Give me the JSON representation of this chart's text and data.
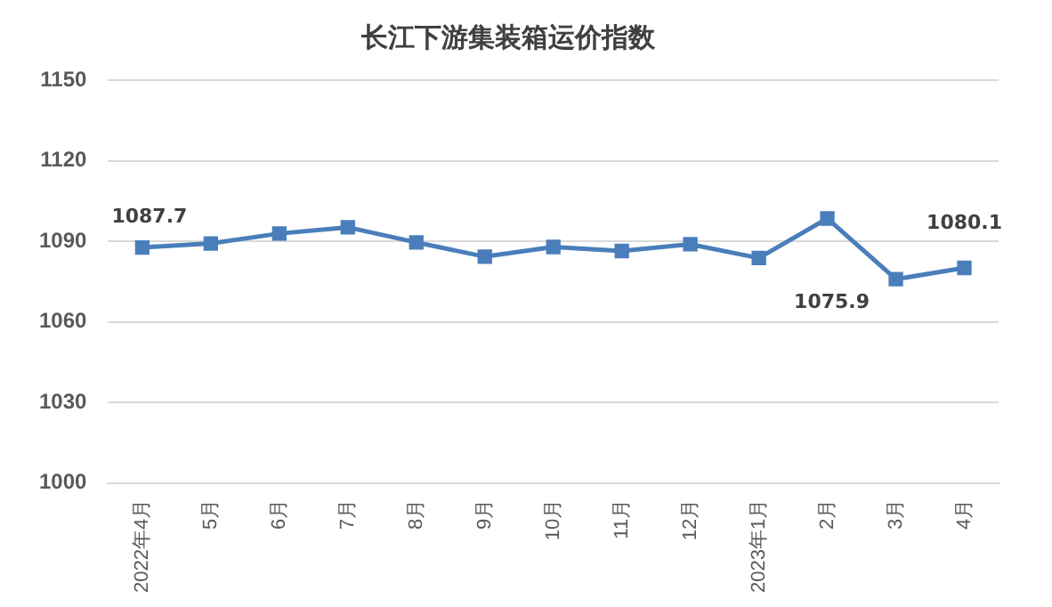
{
  "chart_data": {
    "type": "line",
    "title": "长江下游集装箱运价指数",
    "categories": [
      "2022年4月",
      "5月",
      "6月",
      "7月",
      "8月",
      "9月",
      "10月",
      "11月",
      "12月",
      "2023年1月",
      "2月",
      "3月",
      "4月"
    ],
    "series": [
      {
        "color": "#4a7ebb",
        "values": [
          1087.7,
          1089.2,
          1092.9,
          1095.2,
          1089.6,
          1084.3,
          1087.9,
          1086.4,
          1088.9,
          1083.8,
          1098.5,
          1075.9,
          1080.1
        ],
        "value_labels": [
          "1087.7",
          null,
          null,
          null,
          null,
          null,
          null,
          null,
          null,
          null,
          null,
          "1075.9",
          "1080.1"
        ]
      }
    ],
    "ylim": [
      1000,
      1150
    ],
    "yticks": [
      1000,
      1030,
      1060,
      1090,
      1120,
      1150
    ],
    "grid": "y",
    "legend": false,
    "marker": "square",
    "line_style": "solid"
  }
}
